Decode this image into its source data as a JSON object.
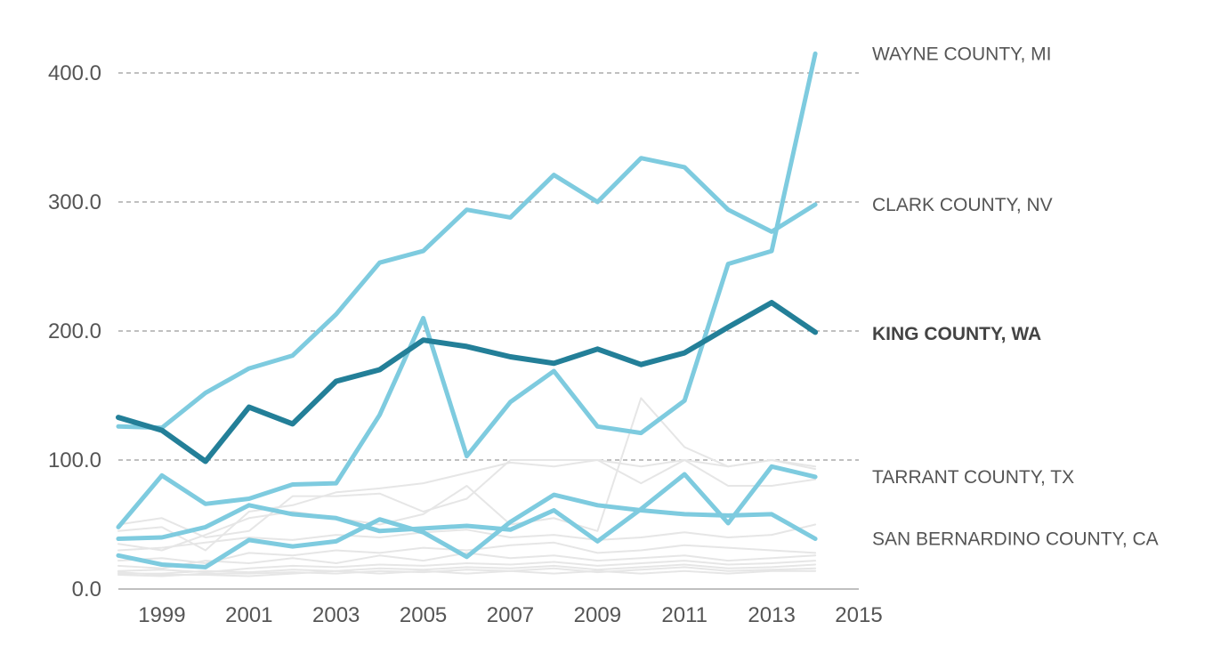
{
  "chart_data": {
    "type": "line",
    "x": [
      1998,
      1999,
      2000,
      2001,
      2002,
      2003,
      2004,
      2005,
      2006,
      2007,
      2008,
      2009,
      2010,
      2011,
      2012,
      2013,
      2014,
      2015
    ],
    "x_tick_labels": [
      "1999",
      "2001",
      "2003",
      "2005",
      "2007",
      "2009",
      "2011",
      "2013",
      "2015"
    ],
    "x_tick_values": [
      1999,
      2001,
      2003,
      2005,
      2007,
      2009,
      2011,
      2013,
      2015
    ],
    "y_tick_labels": [
      "0.0",
      "100.0",
      "200.0",
      "300.0",
      "400.0"
    ],
    "y_tick_values": [
      0,
      100,
      200,
      300,
      400
    ],
    "ylim": [
      0,
      400
    ],
    "grid": true,
    "title": "",
    "xlabel": "",
    "ylabel": "",
    "colors": {
      "highlight": "#7ecbdf",
      "focus": "#237f98",
      "background": "#e6e6e6",
      "grid": "#9a9a9a",
      "text": "#555555"
    },
    "series": [
      {
        "name": "WAYNE COUNTY, MI",
        "role": "highlight",
        "values": [
          48,
          88,
          66,
          70,
          81,
          82,
          135,
          210,
          103,
          145,
          169,
          126,
          121,
          146,
          252,
          262,
          415,
          null
        ]
      },
      {
        "name": "CLARK COUNTY, NV",
        "role": "highlight",
        "values": [
          126,
          125,
          152,
          171,
          181,
          213,
          253,
          262,
          294,
          288,
          321,
          300,
          334,
          327,
          294,
          277,
          298,
          null
        ]
      },
      {
        "name": "KING COUNTY, WA",
        "role": "focus",
        "values": [
          133,
          123,
          99,
          141,
          128,
          161,
          170,
          193,
          188,
          180,
          175,
          186,
          174,
          183,
          203,
          222,
          199,
          null
        ]
      },
      {
        "name": "TARRANT COUNTY, TX",
        "role": "highlight",
        "values": [
          39,
          40,
          48,
          65,
          58,
          55,
          45,
          47,
          49,
          46,
          61,
          37,
          62,
          89,
          51,
          95,
          87,
          null
        ]
      },
      {
        "name": "SAN BERNARDINO COUNTY, CA",
        "role": "highlight",
        "values": [
          26,
          19,
          17,
          38,
          33,
          37,
          54,
          44,
          25,
          52,
          73,
          65,
          61,
          58,
          57,
          58,
          39,
          null
        ]
      }
    ],
    "background_series": [
      {
        "values": [
          45,
          48,
          30,
          60,
          65,
          75,
          78,
          82,
          90,
          98,
          95,
          100,
          95,
          100,
          95,
          100,
          95,
          null
        ]
      },
      {
        "values": [
          50,
          55,
          40,
          45,
          72,
          72,
          74,
          60,
          70,
          100,
          100,
          100,
          82,
          100,
          80,
          80,
          85,
          null
        ]
      },
      {
        "values": [
          35,
          30,
          42,
          55,
          60,
          55,
          50,
          58,
          80,
          50,
          55,
          45,
          148,
          110,
          95,
          100,
          93,
          null
        ]
      },
      {
        "values": [
          30,
          32,
          36,
          40,
          38,
          42,
          40,
          44,
          46,
          40,
          42,
          38,
          40,
          44,
          40,
          42,
          50,
          null
        ]
      },
      {
        "values": [
          22,
          24,
          20,
          28,
          26,
          30,
          28,
          32,
          30,
          34,
          36,
          28,
          30,
          34,
          32,
          30,
          28,
          null
        ]
      },
      {
        "values": [
          18,
          16,
          22,
          20,
          24,
          20,
          26,
          22,
          28,
          24,
          26,
          22,
          24,
          26,
          22,
          24,
          26,
          null
        ]
      },
      {
        "values": [
          14,
          15,
          13,
          16,
          18,
          17,
          19,
          18,
          20,
          19,
          21,
          18,
          20,
          22,
          19,
          20,
          22,
          null
        ]
      },
      {
        "values": [
          12,
          12,
          14,
          13,
          15,
          14,
          16,
          15,
          17,
          16,
          18,
          15,
          17,
          19,
          16,
          17,
          19,
          null
        ]
      },
      {
        "values": [
          11,
          10,
          12,
          12,
          13,
          12,
          14,
          13,
          15,
          14,
          16,
          13,
          15,
          17,
          14,
          15,
          16,
          null
        ]
      },
      {
        "values": [
          13,
          11,
          11,
          10,
          12,
          14,
          12,
          14,
          12,
          14,
          12,
          14,
          12,
          14,
          12,
          14,
          14,
          null
        ]
      }
    ]
  }
}
